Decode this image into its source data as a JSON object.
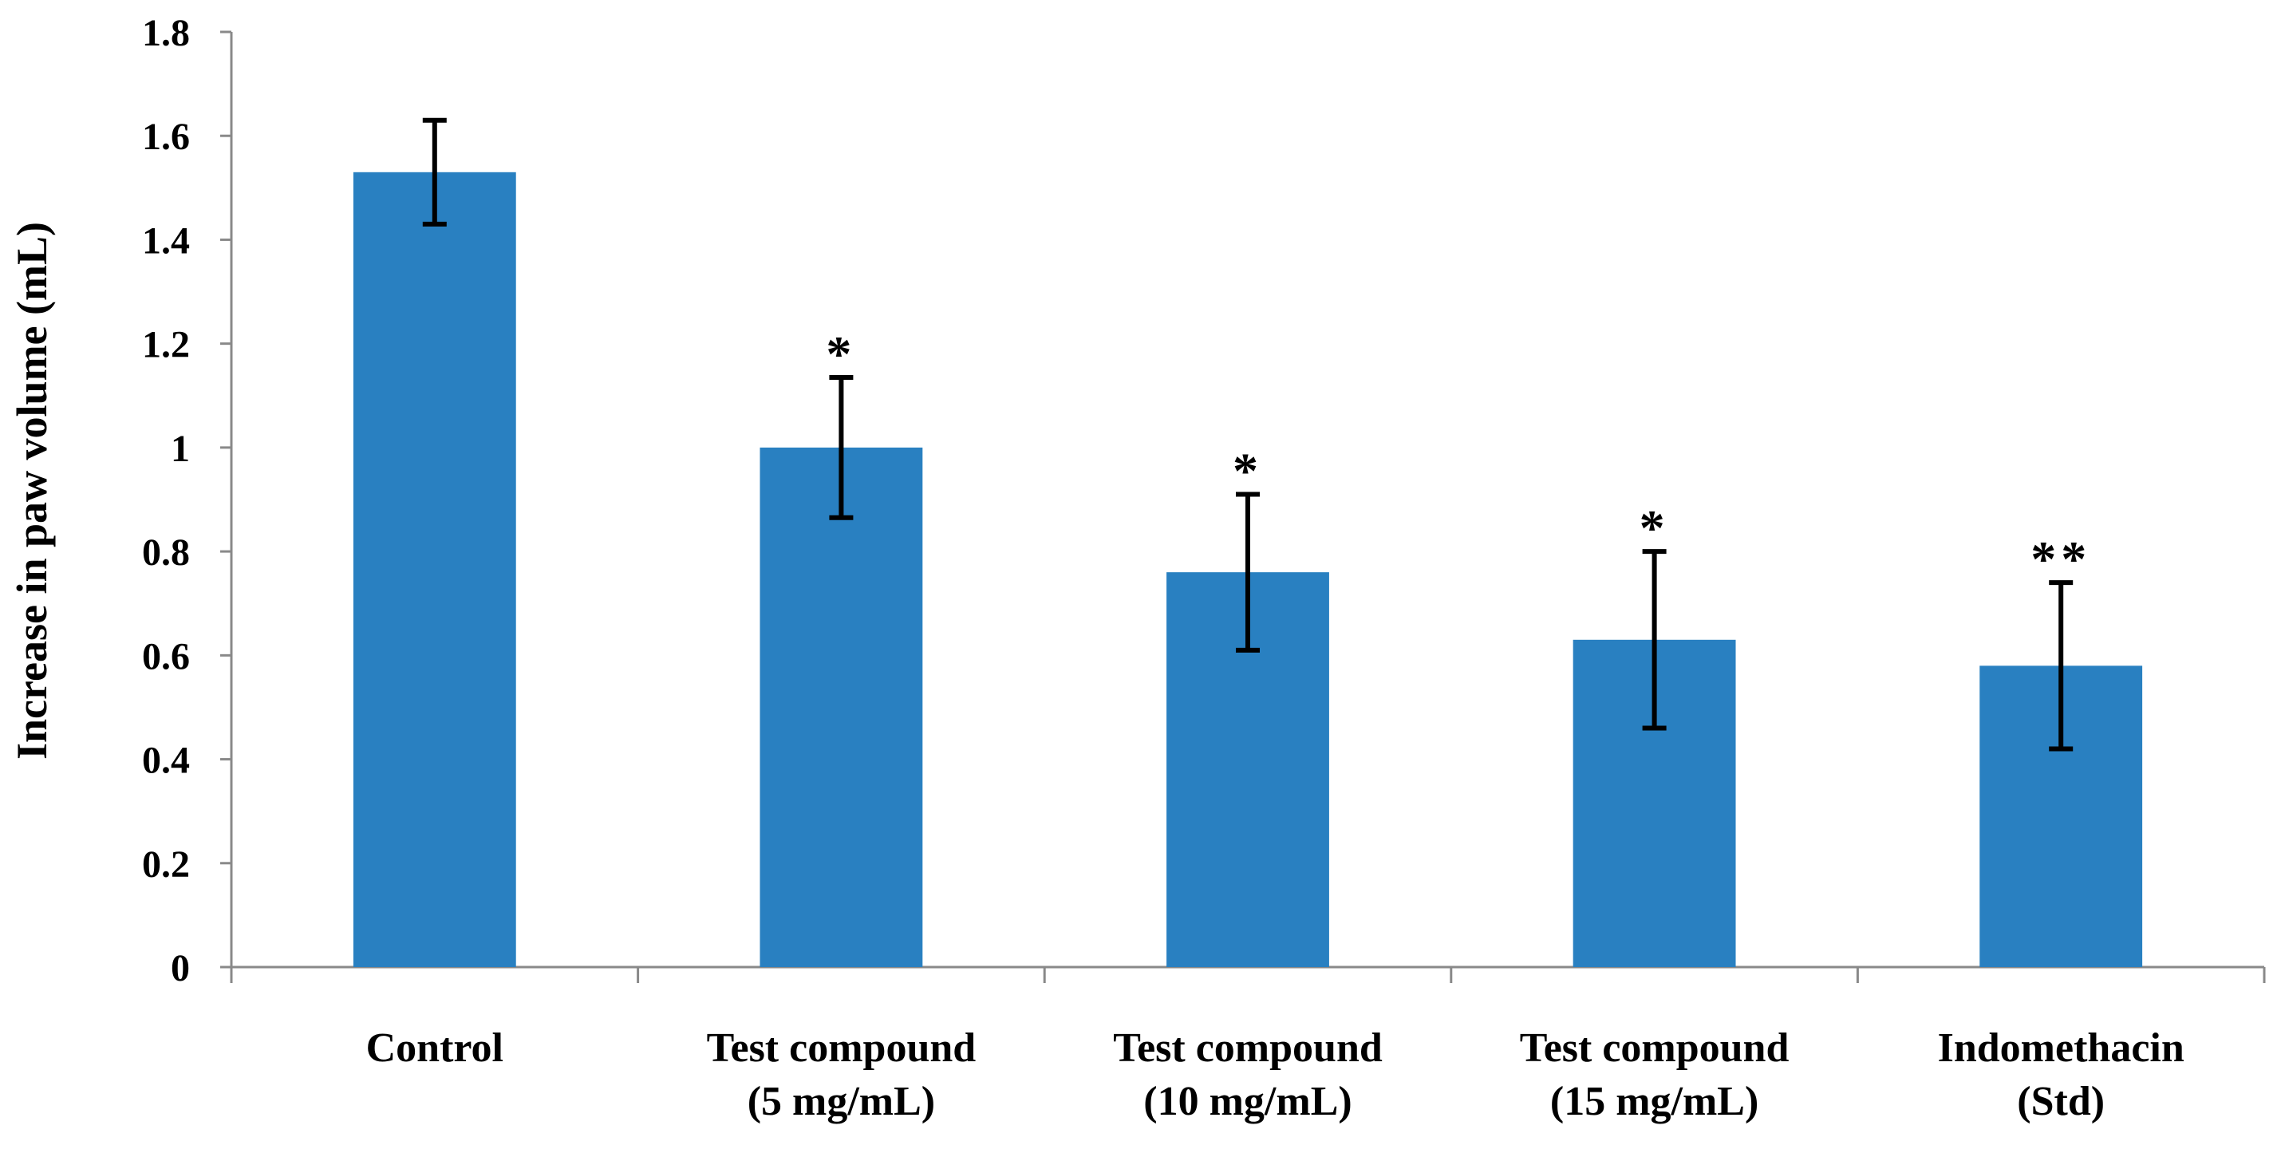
{
  "chart_data": {
    "type": "bar",
    "title": "",
    "xlabel": "",
    "ylabel": "Increase in paw volume (mL)",
    "ylim": [
      0,
      1.8
    ],
    "yticks": [
      "0",
      "0.2",
      "0.4",
      "0.6",
      "0.8",
      "1",
      "1.2",
      "1.4",
      "1.6",
      "1.8"
    ],
    "grid": false,
    "legend": "none",
    "bar_color": "#2980C1",
    "categories": [
      [
        "Control"
      ],
      [
        "Test compound",
        "(5 mg/mL)"
      ],
      [
        "Test compound",
        "(10 mg/mL)"
      ],
      [
        "Test compound",
        "(15 mg/mL)"
      ],
      [
        "Indomethacin",
        "(Std)"
      ]
    ],
    "values": [
      1.53,
      1.0,
      0.76,
      0.63,
      0.58
    ],
    "error": [
      0.1,
      0.135,
      0.15,
      0.17,
      0.16
    ],
    "significance": [
      "",
      "*",
      "*",
      "*",
      "**"
    ]
  }
}
